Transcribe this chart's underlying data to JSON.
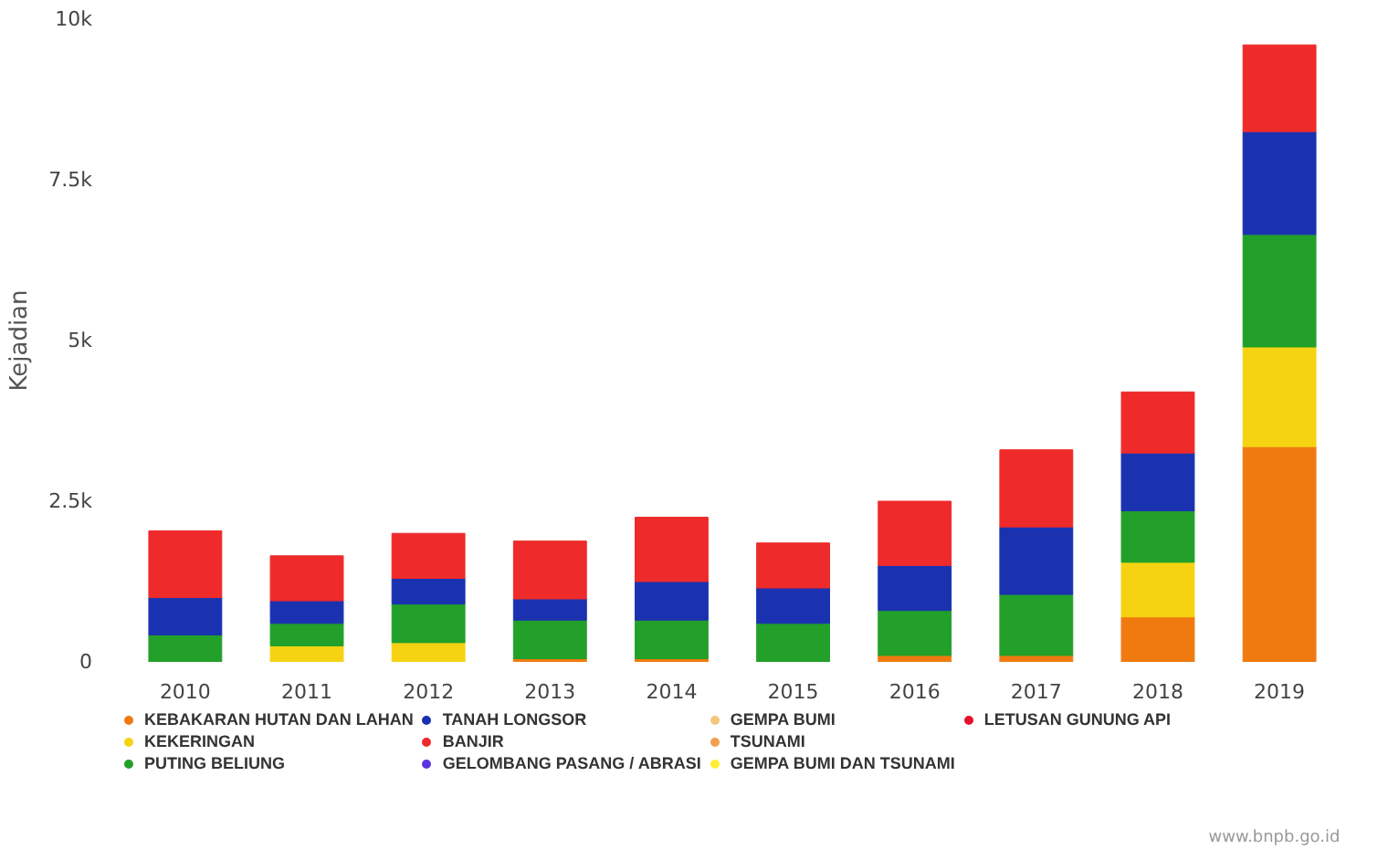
{
  "chart_data": {
    "type": "bar",
    "stacked": true,
    "ylabel": "Kejadian",
    "categories": [
      "2010",
      "2011",
      "2012",
      "2013",
      "2014",
      "2015",
      "2016",
      "2017",
      "2018",
      "2019"
    ],
    "ylim": [
      0,
      10000
    ],
    "yticks": [
      0,
      {
        "value": 2500,
        "label": "2.5k"
      },
      {
        "value": 5000,
        "label": "5k"
      },
      {
        "value": 7500,
        "label": "7.5k"
      },
      {
        "value": 10000,
        "label": "10k"
      }
    ],
    "grid": false,
    "legend": "bottom",
    "series": [
      {
        "name": "KEBAKARAN HUTAN DAN LAHAN",
        "color": "#f07a10",
        "values": [
          null,
          null,
          null,
          50,
          50,
          null,
          100,
          100,
          700,
          3350
        ]
      },
      {
        "name": "KEKERINGAN",
        "color": "#f5d312",
        "values": [
          null,
          250,
          300,
          null,
          null,
          null,
          null,
          null,
          850,
          1550
        ]
      },
      {
        "name": "PUTING BELIUNG",
        "color": "#22a02a",
        "values": [
          420,
          350,
          600,
          600,
          600,
          600,
          700,
          950,
          800,
          1750
        ]
      },
      {
        "name": "TANAH LONGSOR",
        "color": "#1a32b0",
        "values": [
          580,
          350,
          400,
          330,
          600,
          550,
          700,
          1050,
          900,
          1600
        ]
      },
      {
        "name": "BANJIR",
        "color": "#ee2a2a",
        "values": [
          1040,
          700,
          700,
          900,
          1000,
          700,
          1000,
          1200,
          950,
          1350
        ]
      },
      {
        "name": "GELOMBANG PASANG / ABRASI",
        "color": "#5a34e0",
        "values": [
          null,
          null,
          null,
          null,
          null,
          null,
          null,
          null,
          null,
          null
        ]
      },
      {
        "name": "GEMPA BUMI",
        "color": "#f5c77a",
        "values": [
          null,
          null,
          null,
          null,
          null,
          null,
          null,
          null,
          null,
          null
        ]
      },
      {
        "name": "TSUNAMI",
        "color": "#f0a050",
        "values": [
          null,
          null,
          null,
          null,
          null,
          null,
          null,
          null,
          null,
          null
        ]
      },
      {
        "name": "GEMPA BUMI DAN TSUNAMI",
        "color": "#ffee33",
        "values": [
          null,
          null,
          null,
          null,
          null,
          null,
          null,
          null,
          null,
          null
        ]
      },
      {
        "name": "LETUSAN GUNUNG API",
        "color": "#e8102a",
        "values": [
          null,
          null,
          null,
          null,
          null,
          null,
          null,
          null,
          null,
          null
        ]
      }
    ],
    "annotations": [
      "www.bnpb.go.id"
    ]
  }
}
